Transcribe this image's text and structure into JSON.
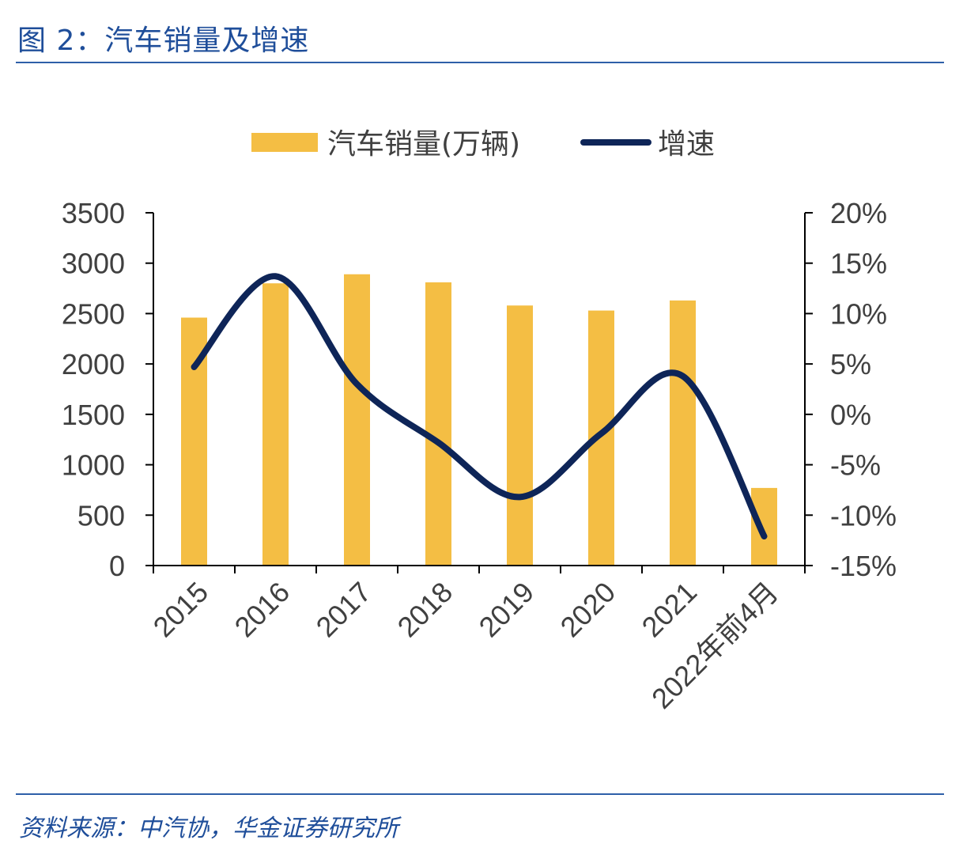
{
  "header": {
    "title": "图 2：汽车销量及增速"
  },
  "footer": {
    "source": "资料来源：中汽协，华金证券研究所"
  },
  "colors": {
    "bar": "#F4BE44",
    "line": "#0E2558",
    "axis": "#000000",
    "text": "#404040",
    "brand": "#1F4E9A"
  },
  "chart_data": {
    "type": "bar",
    "categories": [
      "2015",
      "2016",
      "2017",
      "2018",
      "2019",
      "2020",
      "2021",
      "2022年前4月"
    ],
    "series": [
      {
        "name": "汽车销量(万辆)",
        "type": "bar",
        "axis": "left",
        "values": [
          2460,
          2800,
          2890,
          2810,
          2580,
          2530,
          2630,
          770
        ]
      },
      {
        "name": "增速",
        "type": "line",
        "axis": "right",
        "smooth": true,
        "values": [
          4.7,
          13.7,
          3.0,
          -2.8,
          -8.2,
          -1.9,
          3.8,
          -12.1
        ]
      }
    ],
    "y_left": {
      "min": 0,
      "max": 3500,
      "ticks": [
        0,
        500,
        1000,
        1500,
        2000,
        2500,
        3000,
        3500
      ],
      "tick_labels": [
        "0",
        "500",
        "1000",
        "1500",
        "2000",
        "2500",
        "3000",
        "3500"
      ]
    },
    "y_right": {
      "min": -15,
      "max": 20,
      "ticks": [
        -15,
        -10,
        -5,
        0,
        5,
        10,
        15,
        20
      ],
      "tick_labels": [
        "-15%",
        "-10%",
        "-5%",
        "0%",
        "5%",
        "10%",
        "15%",
        "20%"
      ]
    },
    "legend": {
      "position": "top",
      "items": [
        "汽车销量(万辆)",
        "增速"
      ]
    },
    "grid": false
  }
}
